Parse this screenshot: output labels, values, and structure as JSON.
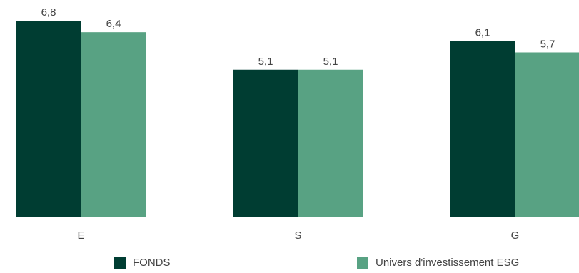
{
  "chart_data": {
    "type": "bar",
    "categories": [
      "E",
      "S",
      "G"
    ],
    "series": [
      {
        "name": "FONDS",
        "values": [
          6.8,
          5.1,
          6.1
        ],
        "color": "#003D32",
        "labels": [
          "6,8",
          "5,1",
          "6,1"
        ]
      },
      {
        "name": "Univers d'investissement ESG",
        "values": [
          6.4,
          5.1,
          5.7
        ],
        "color": "#58A283",
        "labels": [
          "6,4",
          "5,1",
          "5,7"
        ]
      }
    ],
    "ylim": [
      0,
      6.8
    ],
    "grid": false,
    "legend_position": "bottom"
  }
}
